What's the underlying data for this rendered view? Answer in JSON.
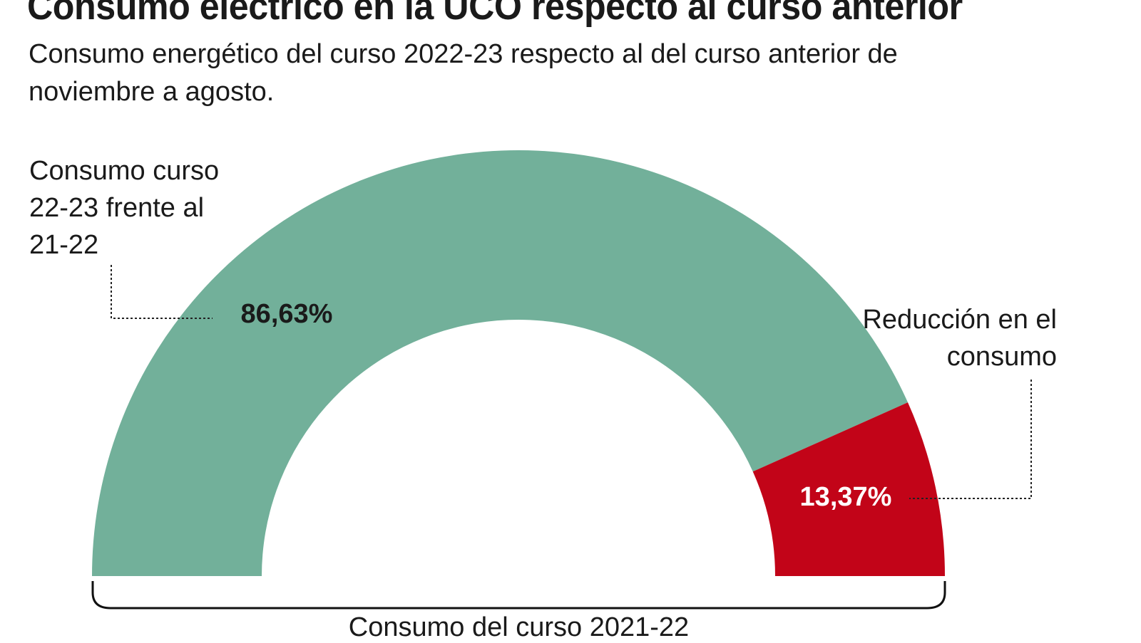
{
  "title": "Consumo eléctrico en la UCO respecto al curso anterior",
  "subtitle": "Consumo energético del curso 2022-23 respecto al del curso anterior de noviembre a agosto.",
  "chart_data": {
    "type": "pie",
    "variant": "semi-donut",
    "slices": [
      {
        "label": "Consumo curso 22-23 frente al 21-22",
        "value": 86.63,
        "value_label": "86,63%",
        "color": "#72b09a"
      },
      {
        "label": "Reducción en el consumo",
        "value": 13.37,
        "value_label": "13,37%",
        "color": "#c20418"
      }
    ],
    "total_label": "Consumo del curso 2021-22"
  }
}
